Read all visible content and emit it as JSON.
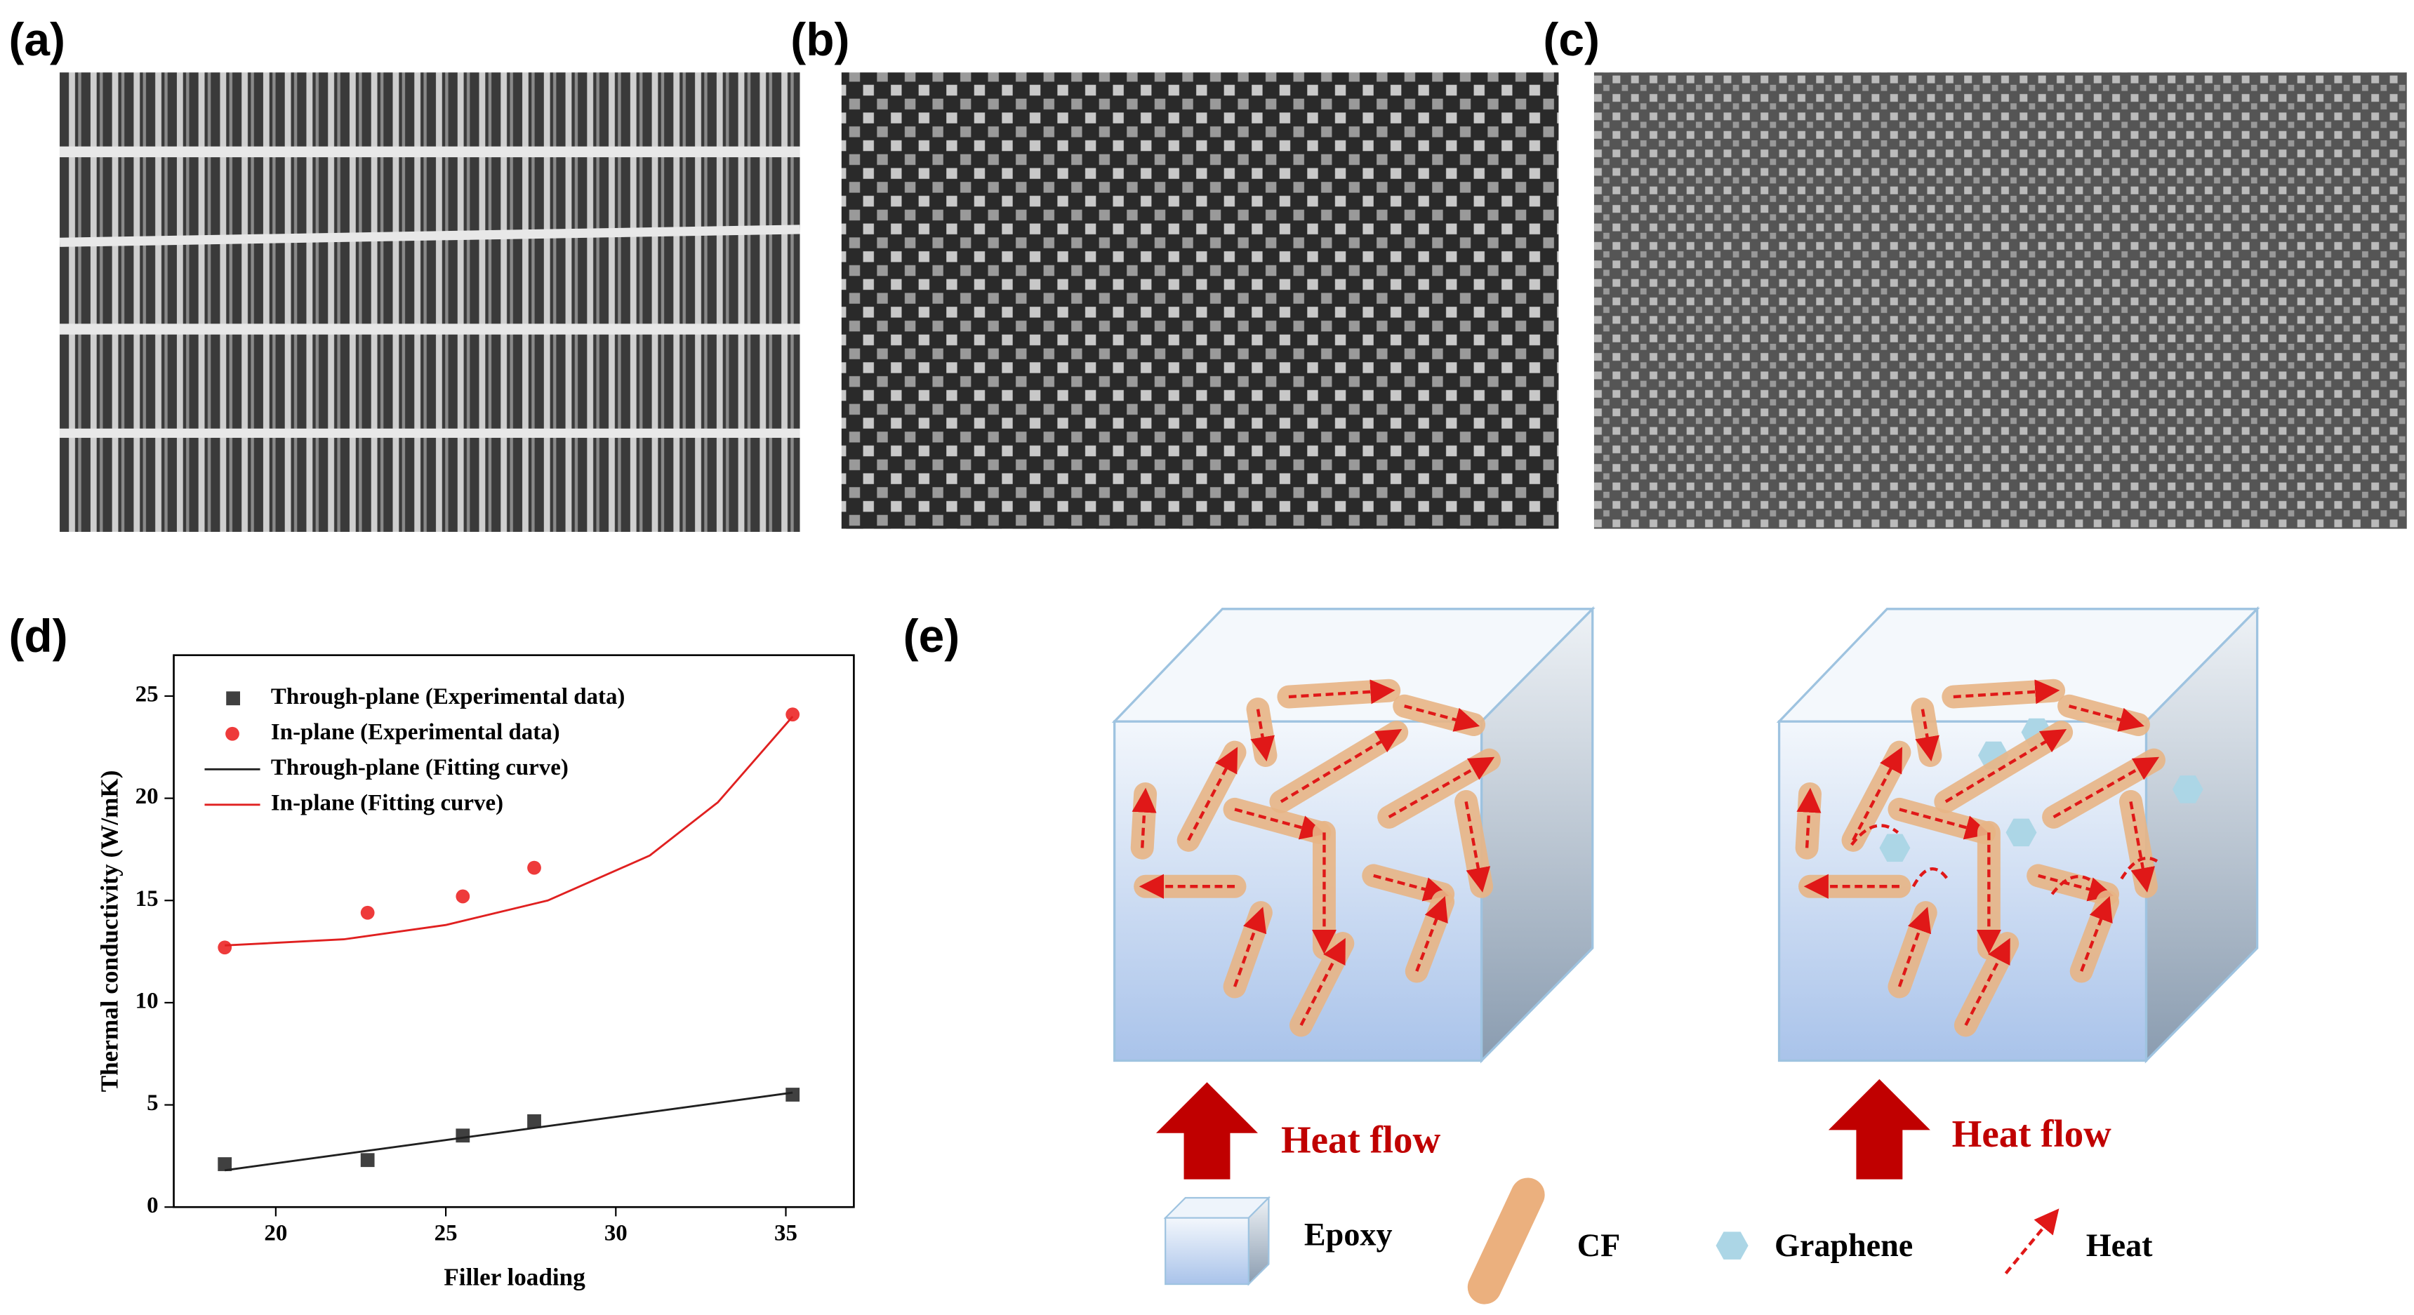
{
  "panels": {
    "a": "(a)",
    "b": "(b)",
    "c": "(c)",
    "d": "(d)",
    "e": "(e)"
  },
  "chart_data": {
    "type": "scatter",
    "xlabel": "Filler loading",
    "ylabel": "Thermal conductivity (W/mK)",
    "xlim": [
      17,
      37
    ],
    "ylim": [
      0,
      27
    ],
    "xticks": [
      20,
      25,
      30,
      35
    ],
    "yticks": [
      0,
      5,
      10,
      15,
      20,
      25
    ],
    "series": [
      {
        "name": "Through-plane (Experimental data)",
        "color": "#404040",
        "marker": "square",
        "x": [
          18.5,
          22.7,
          25.5,
          27.6,
          35.2
        ],
        "values": [
          2.1,
          2.3,
          3.5,
          4.2,
          5.5
        ]
      },
      {
        "name": "In-plane (Experimental data)",
        "color": "#ee3b3b",
        "marker": "circle",
        "x": [
          18.5,
          22.7,
          25.5,
          27.6,
          35.2
        ],
        "values": [
          12.7,
          14.4,
          15.2,
          16.6,
          24.1
        ]
      },
      {
        "name": "Through-plane (Fitting curve)",
        "color": "#202020",
        "marker": "none",
        "x": [
          18.5,
          35.2
        ],
        "values": [
          1.8,
          5.6
        ]
      },
      {
        "name": "In-plane (Fitting curve)",
        "color": "#e02020",
        "marker": "none",
        "x": [
          18.5,
          22,
          25,
          28,
          31,
          33,
          35.2
        ],
        "values": [
          12.8,
          13.1,
          13.8,
          15.0,
          17.2,
          19.8,
          24.0
        ]
      }
    ]
  },
  "diagram": {
    "heat_flow_left": "Heat flow",
    "heat_flow_right": "Heat flow",
    "legend": [
      "Epoxy",
      "CF",
      "Graphene",
      "Heat"
    ]
  }
}
